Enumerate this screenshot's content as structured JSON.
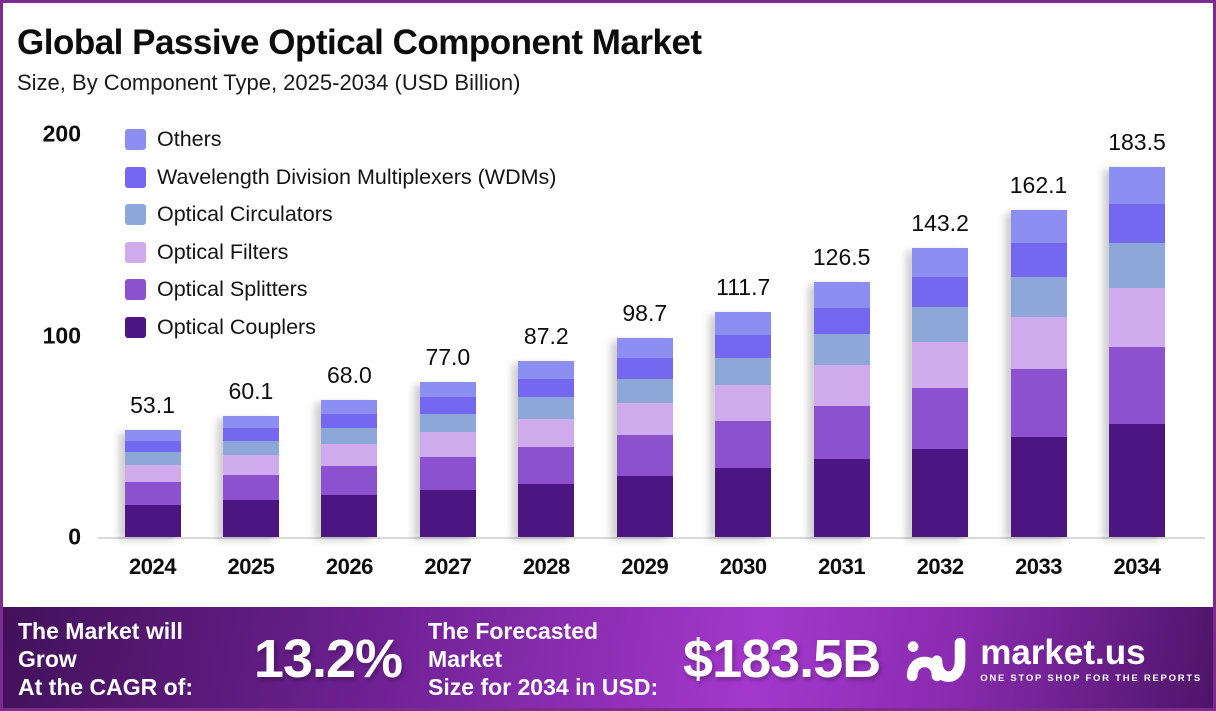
{
  "title": "Global Passive Optical Component Market",
  "subtitle": "Size, By Component Type, 2025-2034 (USD Billion)",
  "colors": {
    "frame_border": "#7d2b8f",
    "axis_line": "#d9d9d9",
    "banner_gradient": [
      "#42115a",
      "#a438cd",
      "#4d1468"
    ]
  },
  "chart_data": {
    "type": "bar",
    "stacked": true,
    "title": "Global Passive Optical Component Market",
    "subtitle": "Size, By Component Type, 2025-2034 (USD Billion)",
    "unit": "USD Billion",
    "categories": [
      "2024",
      "2025",
      "2026",
      "2027",
      "2028",
      "2029",
      "2030",
      "2031",
      "2032",
      "2033",
      "2034"
    ],
    "totals": [
      53.1,
      60.1,
      68.0,
      77.0,
      87.2,
      98.7,
      111.7,
      126.5,
      143.2,
      162.1,
      183.5
    ],
    "series": [
      {
        "name": "Optical Couplers",
        "color": "#4b1682",
        "values": [
          16.2,
          18.3,
          20.7,
          23.5,
          26.6,
          30.1,
          34.1,
          38.6,
          43.7,
          49.4,
          56.0
        ]
      },
      {
        "name": "Optical Splitters",
        "color": "#8b51ce",
        "values": [
          11.2,
          12.6,
          14.3,
          16.2,
          18.3,
          20.7,
          23.5,
          26.6,
          30.1,
          34.0,
          38.5
        ]
      },
      {
        "name": "Optical Filters",
        "color": "#cfaaec",
        "values": [
          8.5,
          9.6,
          10.9,
          12.3,
          14.0,
          15.8,
          17.9,
          20.2,
          22.9,
          25.9,
          29.4
        ]
      },
      {
        "name": "Optical Circulators",
        "color": "#8ea7d9",
        "values": [
          6.4,
          7.2,
          8.2,
          9.2,
          10.5,
          11.8,
          13.4,
          15.2,
          17.2,
          19.5,
          22.0
        ]
      },
      {
        "name": "Wavelength Division Multiplexers (WDMs)",
        "color": "#7468f0",
        "values": [
          5.6,
          6.3,
          7.1,
          8.1,
          9.2,
          10.4,
          11.7,
          13.3,
          15.0,
          17.0,
          19.3
        ]
      },
      {
        "name": "Others",
        "color": "#8d8ef2",
        "values": [
          5.3,
          6.0,
          6.8,
          7.7,
          8.7,
          9.9,
          11.2,
          12.7,
          14.3,
          16.2,
          18.4
        ]
      }
    ],
    "y_ticks": [
      0,
      100,
      200
    ],
    "ylim": [
      0,
      200
    ],
    "grid": false,
    "legend_position": "upper-left-inside"
  },
  "footer": {
    "cagr_label_line1": "The Market will Grow",
    "cagr_label_line2": "At the CAGR of:",
    "cagr_value": "13.2%",
    "forecast_label_line1": "The Forecasted Market",
    "forecast_label_line2": "Size for 2034 in USD:",
    "forecast_value": "$183.5B",
    "brand": {
      "name": "market.us",
      "tagline": "ONE STOP SHOP FOR THE REPORTS"
    }
  }
}
